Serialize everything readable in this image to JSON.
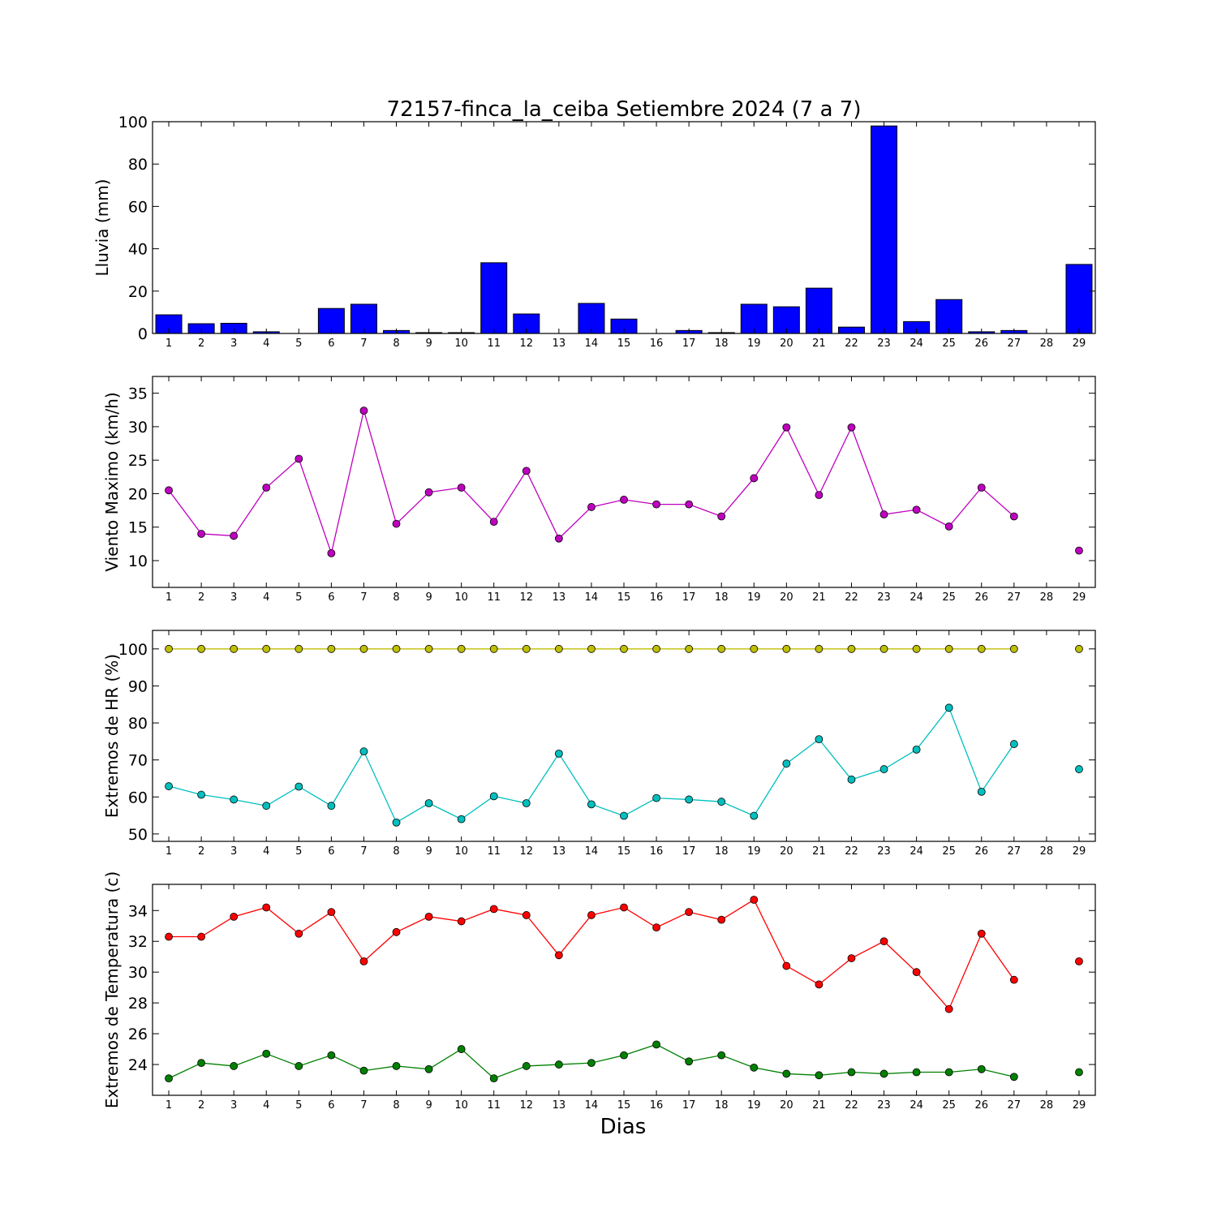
{
  "title": "72157-finca_la_ceiba Setiembre 2024  (7 a 7)",
  "xlabel": "Dias",
  "chart_data": [
    {
      "type": "bar",
      "ylabel": "Lluvia (mm)",
      "ylim": [
        0,
        100
      ],
      "yticks": [
        0,
        20,
        40,
        60,
        80,
        100
      ],
      "x": [
        1,
        2,
        3,
        4,
        5,
        6,
        7,
        8,
        9,
        10,
        11,
        12,
        13,
        14,
        15,
        16,
        17,
        18,
        19,
        20,
        21,
        22,
        23,
        24,
        25,
        26,
        27,
        28,
        29
      ],
      "xticks": [
        1,
        2,
        3,
        4,
        5,
        6,
        7,
        8,
        9,
        10,
        11,
        12,
        13,
        14,
        15,
        16,
        17,
        18,
        19,
        20,
        21,
        22,
        23,
        24,
        25,
        26,
        27,
        28,
        29
      ],
      "series": [
        {
          "color": "#0000ff",
          "values": [
            8.8,
            4.6,
            4.8,
            0.8,
            0.0,
            11.8,
            13.8,
            1.4,
            0.4,
            0.4,
            33.4,
            9.2,
            0.0,
            14.2,
            6.8,
            0.0,
            1.4,
            0.4,
            13.8,
            12.6,
            21.4,
            3.0,
            98.0,
            5.6,
            16.0,
            0.8,
            1.4,
            0.0,
            32.6
          ]
        }
      ]
    },
    {
      "type": "line",
      "ylabel": "Viento Maximo (km/h)",
      "ylim": [
        6,
        37.5
      ],
      "yticks": [
        10,
        15,
        20,
        25,
        30,
        35
      ],
      "x": [
        1,
        2,
        3,
        4,
        5,
        6,
        7,
        8,
        9,
        10,
        11,
        12,
        13,
        14,
        15,
        16,
        17,
        18,
        19,
        20,
        21,
        22,
        23,
        24,
        25,
        26,
        27,
        28,
        29
      ],
      "xticks": [
        1,
        2,
        3,
        4,
        5,
        6,
        7,
        8,
        9,
        10,
        11,
        12,
        13,
        14,
        15,
        16,
        17,
        18,
        19,
        20,
        21,
        22,
        23,
        24,
        25,
        26,
        27,
        28,
        29
      ],
      "series": [
        {
          "color": "#bf00bf",
          "values": [
            20.5,
            14.0,
            13.7,
            20.9,
            25.2,
            11.1,
            32.4,
            15.5,
            20.2,
            20.9,
            15.8,
            23.4,
            13.3,
            18.0,
            19.1,
            18.4,
            18.4,
            16.6,
            22.3,
            29.9,
            19.8,
            29.9,
            16.9,
            17.6,
            15.1,
            20.9,
            16.6,
            null,
            11.5
          ]
        }
      ]
    },
    {
      "type": "line",
      "ylabel": "Extremos de HR (%)",
      "ylim": [
        48,
        105
      ],
      "yticks": [
        50,
        60,
        70,
        80,
        90,
        100
      ],
      "x": [
        1,
        2,
        3,
        4,
        5,
        6,
        7,
        8,
        9,
        10,
        11,
        12,
        13,
        14,
        15,
        16,
        17,
        18,
        19,
        20,
        21,
        22,
        23,
        24,
        25,
        26,
        27,
        28,
        29
      ],
      "xticks": [
        1,
        2,
        3,
        4,
        5,
        6,
        7,
        8,
        9,
        10,
        11,
        12,
        13,
        14,
        15,
        16,
        17,
        18,
        19,
        20,
        21,
        22,
        23,
        24,
        25,
        26,
        27,
        28,
        29
      ],
      "series": [
        {
          "color": "#bfbf00",
          "values": [
            100,
            100,
            100,
            100,
            100,
            100,
            100,
            100,
            100,
            100,
            100,
            100,
            100,
            100,
            100,
            100,
            100,
            100,
            100,
            100,
            100,
            100,
            100,
            100,
            100,
            100,
            100,
            null,
            100
          ]
        },
        {
          "color": "#00bfbf",
          "values": [
            62.9,
            60.6,
            59.3,
            57.6,
            62.8,
            57.6,
            72.3,
            53.1,
            58.3,
            54.0,
            60.2,
            58.3,
            71.7,
            58.0,
            54.9,
            59.7,
            59.3,
            58.7,
            54.9,
            69.0,
            75.6,
            64.7,
            67.5,
            72.8,
            84.1,
            61.4,
            74.3,
            null,
            67.5
          ]
        }
      ]
    },
    {
      "type": "line",
      "ylabel": "Extremos de Temperatura (c)",
      "ylim": [
        22,
        35.7
      ],
      "yticks": [
        24,
        26,
        28,
        30,
        32,
        34
      ],
      "x": [
        1,
        2,
        3,
        4,
        5,
        6,
        7,
        8,
        9,
        10,
        11,
        12,
        13,
        14,
        15,
        16,
        17,
        18,
        19,
        20,
        21,
        22,
        23,
        24,
        25,
        26,
        27,
        28,
        29
      ],
      "xticks": [
        1,
        2,
        3,
        4,
        5,
        6,
        7,
        8,
        9,
        10,
        11,
        12,
        13,
        14,
        15,
        16,
        17,
        18,
        19,
        20,
        21,
        22,
        23,
        24,
        25,
        26,
        27,
        28,
        29
      ],
      "series": [
        {
          "color": "#ff0000",
          "values": [
            32.3,
            32.3,
            33.6,
            34.2,
            32.5,
            33.9,
            30.7,
            32.6,
            33.6,
            33.3,
            34.1,
            33.7,
            31.1,
            33.7,
            34.2,
            32.9,
            33.9,
            33.4,
            34.7,
            30.4,
            29.2,
            30.9,
            32.0,
            30.0,
            27.6,
            32.5,
            29.5,
            null,
            30.7
          ]
        },
        {
          "color": "#008000",
          "values": [
            23.1,
            24.1,
            23.9,
            24.7,
            23.9,
            24.6,
            23.6,
            23.9,
            23.7,
            25.0,
            23.1,
            23.9,
            24.0,
            24.1,
            24.6,
            25.3,
            24.2,
            24.6,
            23.8,
            23.4,
            23.3,
            23.5,
            23.4,
            23.5,
            23.5,
            23.7,
            23.2,
            null,
            23.5
          ]
        }
      ]
    }
  ]
}
